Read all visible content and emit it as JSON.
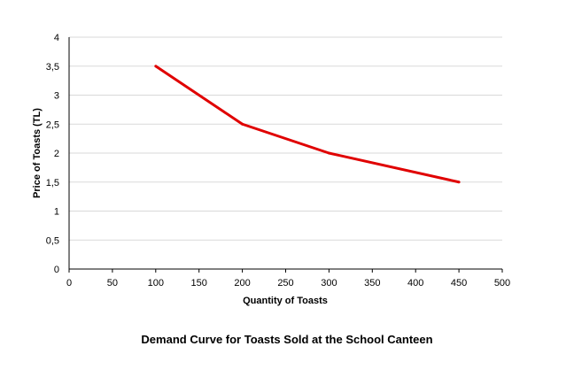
{
  "chart_data": {
    "type": "line",
    "title": "Demand Curve for Toasts Sold at the School Canteen",
    "xlabel": "Quantity  of Toasts",
    "ylabel": "Price of Toasts (TL)",
    "xlim": [
      0,
      500
    ],
    "ylim": [
      0,
      4
    ],
    "x_ticks": [
      "0",
      "50",
      "100",
      "150",
      "200",
      "250",
      "300",
      "350",
      "400",
      "450",
      "500"
    ],
    "y_ticks": [
      "0",
      "0,5",
      "1",
      "1,5",
      "2",
      "2,5",
      "3",
      "3,5",
      "4"
    ],
    "grid": "horizontal",
    "legend": "none",
    "series": [
      {
        "color": "#e00000",
        "x": [
          100,
          200,
          300,
          450
        ],
        "y": [
          3.5,
          2.5,
          2.0,
          1.5
        ]
      }
    ]
  }
}
